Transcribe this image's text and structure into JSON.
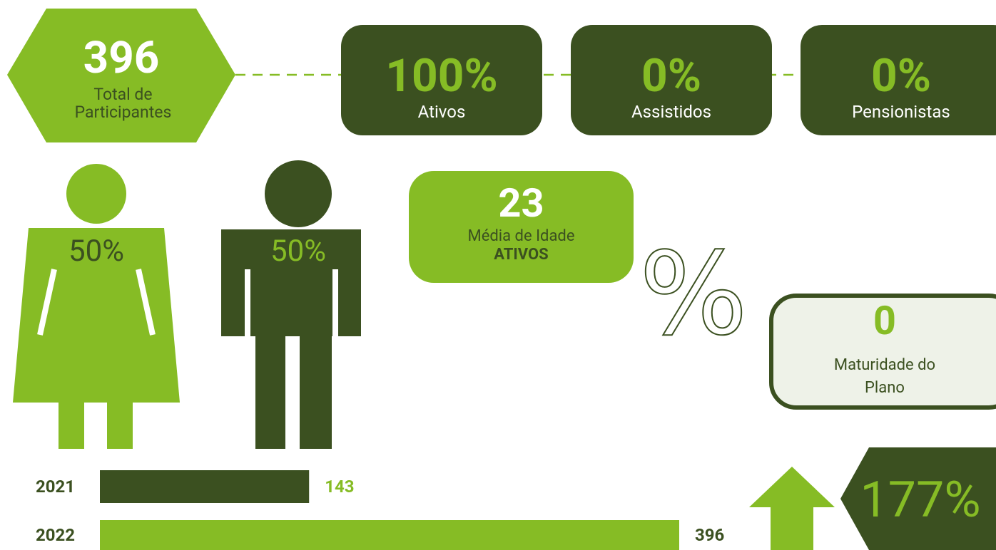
{
  "total": {
    "value": "396",
    "label": "Total de Participantes"
  },
  "stats": [
    {
      "value": "100%",
      "label": "Ativos"
    },
    {
      "value": "0%",
      "label": "Assistidos"
    },
    {
      "value": "0%",
      "label": "Pensionistas"
    }
  ],
  "gender": {
    "female": "50%",
    "male": "50%"
  },
  "age": {
    "value": "23",
    "label": "Média de Idade",
    "group": "ATIVOS"
  },
  "percent_symbol": "%",
  "maturity": {
    "value": "0",
    "label": "Maturidade do Plano"
  },
  "growth": {
    "value": "177%"
  },
  "bars": {
    "categories": [
      "2021",
      "2022"
    ],
    "values": [
      143,
      396
    ],
    "colors": [
      "#3b5020",
      "#86bc25"
    ],
    "label_colors": [
      "#86bc25",
      "#3b5020"
    ]
  }
}
